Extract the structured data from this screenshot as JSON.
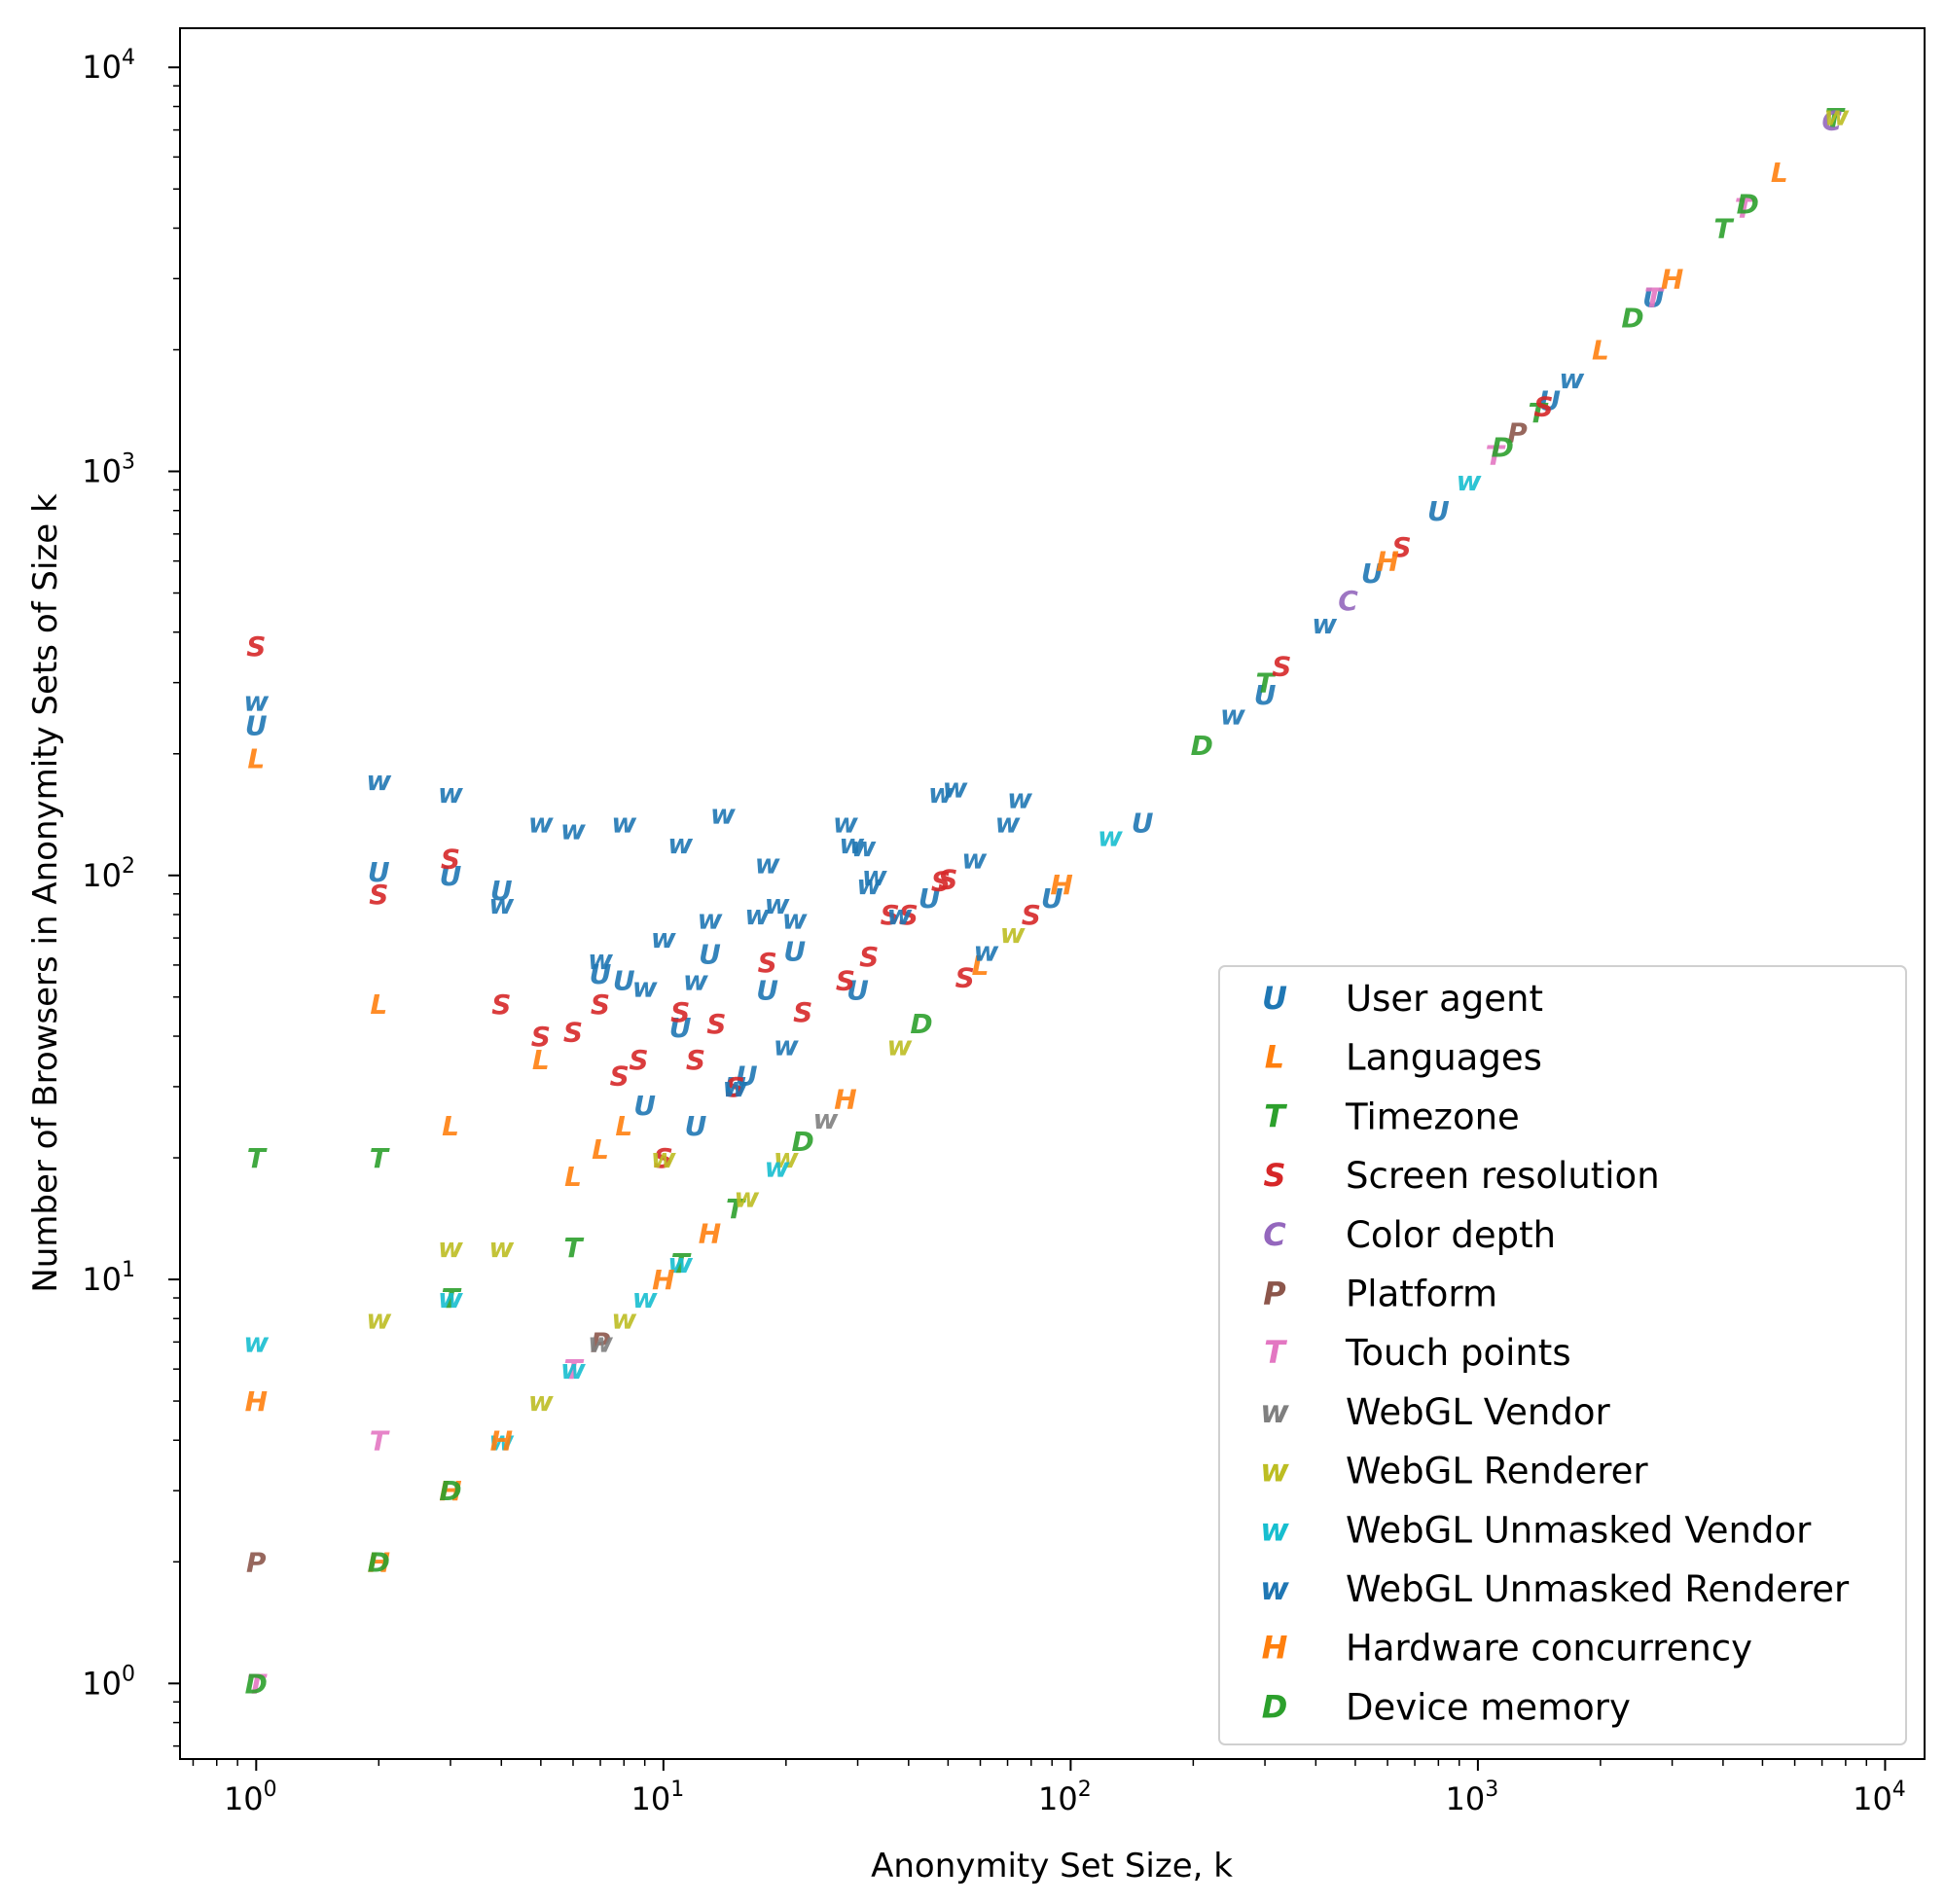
{
  "chart_data": {
    "type": "scatter",
    "title": "",
    "xlabel": "Anonymity Set Size, k",
    "ylabel": "Number of Browsers in Anonymity Sets of Size k",
    "xscale": "log",
    "yscale": "log",
    "xlim": [
      0.65,
      12500
    ],
    "ylim": [
      0.65,
      12500
    ],
    "xticks": [
      {
        "value": 1,
        "base": "10",
        "exp": "0"
      },
      {
        "value": 10,
        "base": "10",
        "exp": "1"
      },
      {
        "value": 100,
        "base": "10",
        "exp": "2"
      },
      {
        "value": 1000,
        "base": "10",
        "exp": "3"
      },
      {
        "value": 10000,
        "base": "10",
        "exp": "4"
      }
    ],
    "yticks": [
      {
        "value": 1,
        "base": "10",
        "exp": "0"
      },
      {
        "value": 10,
        "base": "10",
        "exp": "1"
      },
      {
        "value": 100,
        "base": "10",
        "exp": "2"
      },
      {
        "value": 1000,
        "base": "10",
        "exp": "3"
      },
      {
        "value": 10000,
        "base": "10",
        "exp": "4"
      }
    ],
    "legend_position": "lower-right",
    "series": [
      {
        "name": "User agent",
        "marker": "U",
        "color": "#1f77b4",
        "points": [
          [
            1,
            235
          ],
          [
            2,
            102
          ],
          [
            3,
            100
          ],
          [
            4,
            92
          ],
          [
            7,
            57
          ],
          [
            8,
            55
          ],
          [
            9,
            27
          ],
          [
            11,
            42
          ],
          [
            12,
            24
          ],
          [
            13,
            64
          ],
          [
            15,
            30
          ],
          [
            16,
            32
          ],
          [
            18,
            52
          ],
          [
            21,
            65
          ],
          [
            30,
            52
          ],
          [
            45,
            88
          ],
          [
            90,
            88
          ],
          [
            150,
            135
          ],
          [
            300,
            280
          ],
          [
            550,
            560
          ],
          [
            800,
            800
          ],
          [
            1500,
            1500
          ],
          [
            2700,
            2700
          ]
        ]
      },
      {
        "name": "Languages",
        "marker": "L",
        "color": "#ff7f0e",
        "points": [
          [
            1,
            195
          ],
          [
            2,
            48
          ],
          [
            3,
            24
          ],
          [
            5,
            35
          ],
          [
            6,
            18
          ],
          [
            7,
            21
          ],
          [
            8,
            24
          ],
          [
            60,
            60
          ],
          [
            2000,
            2000
          ],
          [
            5500,
            5500
          ]
        ]
      },
      {
        "name": "Timezone",
        "marker": "T",
        "color": "#2ca02c",
        "points": [
          [
            1,
            20
          ],
          [
            2,
            20
          ],
          [
            3,
            9
          ],
          [
            6,
            12
          ],
          [
            11,
            11
          ],
          [
            15,
            15
          ],
          [
            300,
            300
          ],
          [
            1400,
            1400
          ],
          [
            4000,
            4000
          ],
          [
            7500,
            7500
          ]
        ]
      },
      {
        "name": "Screen resolution",
        "marker": "S",
        "color": "#d62728",
        "points": [
          [
            1,
            370
          ],
          [
            2,
            90
          ],
          [
            3,
            110
          ],
          [
            4,
            48
          ],
          [
            5,
            40
          ],
          [
            6,
            41
          ],
          [
            7,
            48
          ],
          [
            7.8,
            32
          ],
          [
            8.7,
            35
          ],
          [
            10,
            20
          ],
          [
            11,
            46
          ],
          [
            12,
            35
          ],
          [
            13.5,
            43
          ],
          [
            15,
            30
          ],
          [
            18,
            61
          ],
          [
            22,
            46
          ],
          [
            28,
            55
          ],
          [
            32,
            63
          ],
          [
            36,
            80
          ],
          [
            40,
            80
          ],
          [
            48,
            97
          ],
          [
            50,
            98
          ],
          [
            55,
            56
          ],
          [
            80,
            80
          ],
          [
            330,
            330
          ],
          [
            650,
            650
          ],
          [
            1450,
            1450
          ]
        ]
      },
      {
        "name": "Color depth",
        "marker": "C",
        "color": "#9467bd",
        "points": [
          [
            480,
            480
          ],
          [
            7400,
            7400
          ]
        ]
      },
      {
        "name": "Platform",
        "marker": "P",
        "color": "#8c564b",
        "points": [
          [
            1,
            2
          ],
          [
            7,
            7
          ],
          [
            1250,
            1250
          ]
        ]
      },
      {
        "name": "Touch points",
        "marker": "T",
        "color": "#e377c2",
        "points": [
          [
            1,
            1
          ],
          [
            2,
            4
          ],
          [
            6,
            6
          ],
          [
            1100,
            1100
          ],
          [
            2700,
            2700
          ],
          [
            4500,
            4500
          ]
        ]
      },
      {
        "name": "WebGL Vendor",
        "marker": "w",
        "color": "#7f7f7f",
        "points": [
          [
            7,
            7
          ],
          [
            25,
            25
          ]
        ]
      },
      {
        "name": "WebGL Renderer",
        "marker": "w",
        "color": "#bcbd22",
        "points": [
          [
            2,
            8
          ],
          [
            3,
            12
          ],
          [
            4,
            12
          ],
          [
            5,
            5
          ],
          [
            8,
            8
          ],
          [
            10,
            20
          ],
          [
            16,
            16
          ],
          [
            20,
            20
          ],
          [
            38,
            38
          ],
          [
            72,
            72
          ],
          [
            7600,
            7600
          ]
        ]
      },
      {
        "name": "WebGL Unmasked Vendor",
        "marker": "w",
        "color": "#17becf",
        "points": [
          [
            1,
            7
          ],
          [
            3,
            9
          ],
          [
            4,
            4
          ],
          [
            6,
            6
          ],
          [
            9,
            9
          ],
          [
            11,
            11
          ],
          [
            19,
            19
          ],
          [
            125,
            125
          ],
          [
            950,
            950
          ]
        ]
      },
      {
        "name": "WebGL Unmasked Renderer",
        "marker": "w",
        "color": "#1f77b4",
        "points": [
          [
            1,
            270
          ],
          [
            2,
            172
          ],
          [
            3,
            160
          ],
          [
            4,
            85
          ],
          [
            5,
            135
          ],
          [
            6,
            130
          ],
          [
            7,
            62
          ],
          [
            8,
            135
          ],
          [
            9,
            53
          ],
          [
            10,
            70
          ],
          [
            11,
            120
          ],
          [
            12,
            55
          ],
          [
            13,
            78
          ],
          [
            14,
            142
          ],
          [
            15,
            30
          ],
          [
            17,
            80
          ],
          [
            18,
            107
          ],
          [
            19,
            85
          ],
          [
            20,
            38
          ],
          [
            21,
            78
          ],
          [
            28,
            135
          ],
          [
            29,
            120
          ],
          [
            31,
            118
          ],
          [
            32,
            95
          ],
          [
            33,
            100
          ],
          [
            38,
            80
          ],
          [
            48,
            160
          ],
          [
            52,
            165
          ],
          [
            58,
            110
          ],
          [
            62,
            65
          ],
          [
            70,
            135
          ],
          [
            75,
            155
          ],
          [
            250,
            250
          ],
          [
            420,
            420
          ],
          [
            1700,
            1700
          ]
        ]
      },
      {
        "name": "Hardware concurrency",
        "marker": "H",
        "color": "#ff7f0e",
        "points": [
          [
            1,
            5
          ],
          [
            2,
            2
          ],
          [
            3,
            3
          ],
          [
            4,
            4
          ],
          [
            10,
            10
          ],
          [
            13,
            13
          ],
          [
            28,
            28
          ],
          [
            95,
            95
          ],
          [
            600,
            600
          ],
          [
            3000,
            3000
          ]
        ]
      },
      {
        "name": "Device memory",
        "marker": "D",
        "color": "#2ca02c",
        "points": [
          [
            1,
            1
          ],
          [
            2,
            2
          ],
          [
            3,
            3
          ],
          [
            22,
            22
          ],
          [
            43,
            43
          ],
          [
            210,
            210
          ],
          [
            1150,
            1150
          ],
          [
            2400,
            2400
          ],
          [
            4600,
            4600
          ]
        ]
      }
    ]
  }
}
